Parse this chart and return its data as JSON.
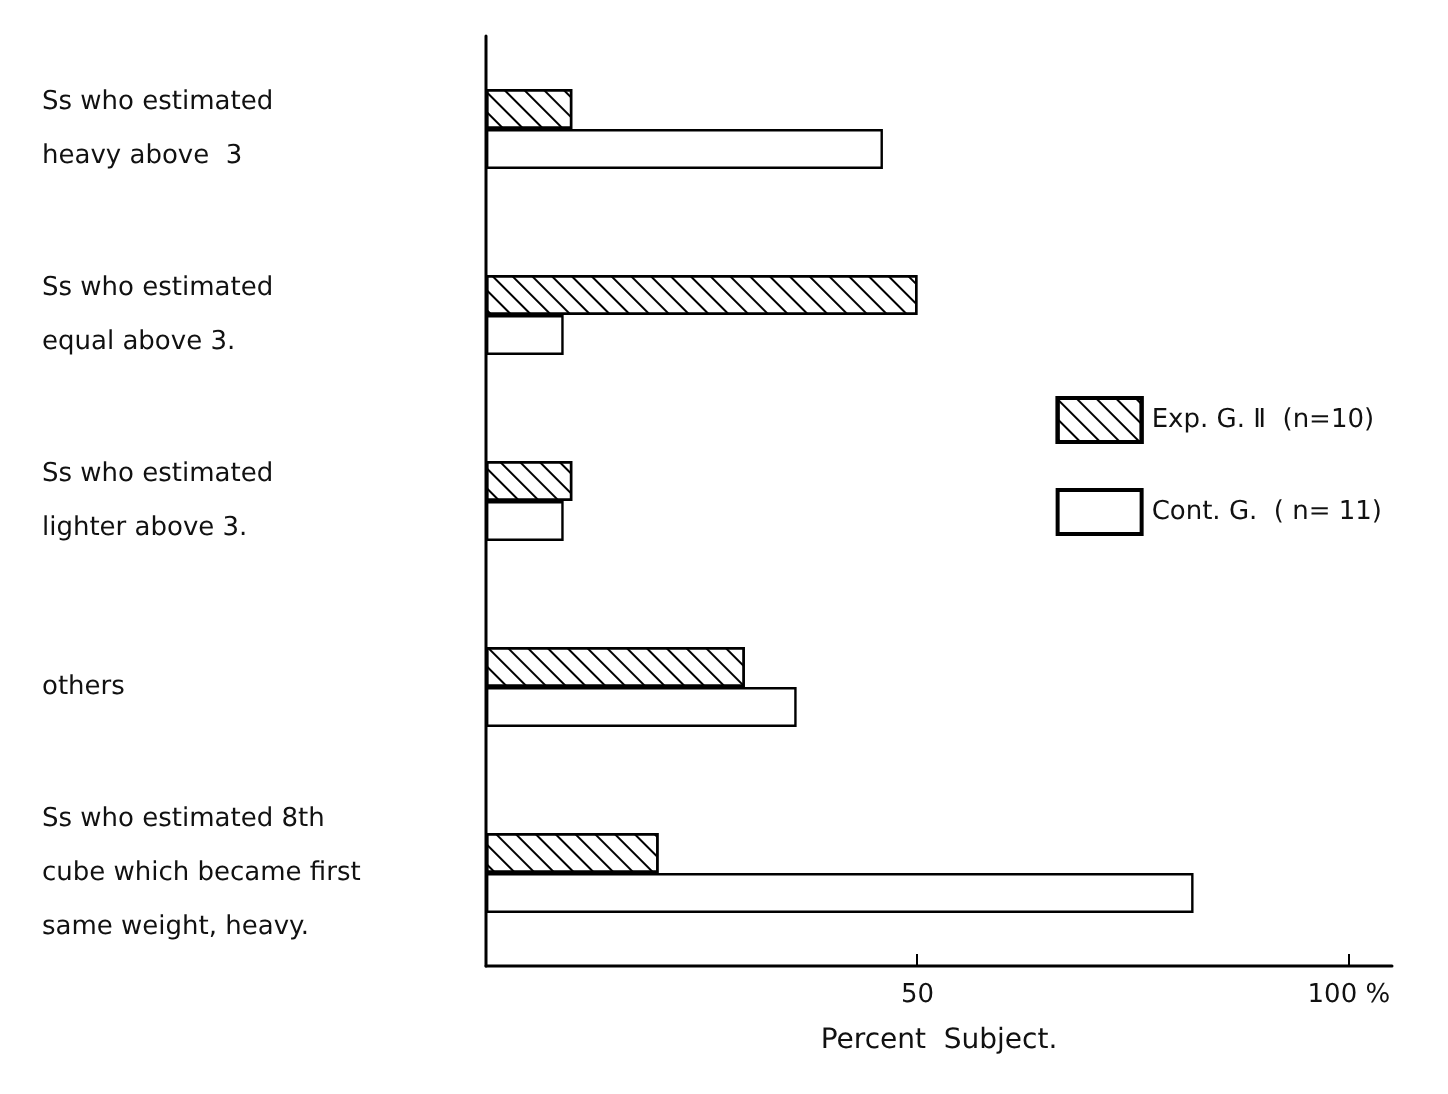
{
  "chart_data": {
    "type": "bar",
    "orientation": "horizontal",
    "xlabel": "Percent  Subject.",
    "categories": [
      "Ss who estimated\nheavy above  3",
      "Ss who estimated\nequal above 3.",
      "Ss who estimated\nlighter above 3.",
      "others",
      "Ss who estimated 8th\ncube which became first\nsame weight, heavy."
    ],
    "series": [
      {
        "name": "Exp. G. Ⅱ  (n=10)",
        "color": "#ffffff",
        "values": [
          10,
          50,
          10,
          30,
          20
        ]
      },
      {
        "name": "Cont. G.  ( n= 11)",
        "color": "#ffffff",
        "values": [
          46,
          9,
          9,
          36,
          82
        ]
      }
    ],
    "xlim": [
      0,
      105
    ],
    "xticks": [
      50,
      {
        "value": 100,
        "label": "100 %"
      }
    ],
    "grid": false,
    "legend": "right"
  }
}
